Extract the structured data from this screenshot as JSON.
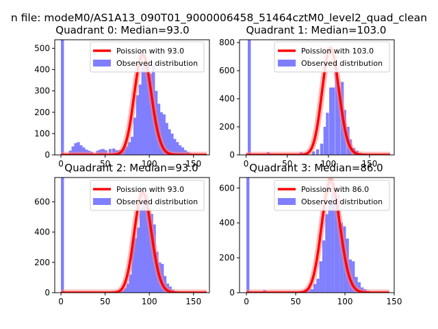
{
  "suptitle": "n file: modeM0/AS1A13_090T01_9000006458_51464cztM0_level2_quad_clean",
  "colors": {
    "hist": "#7f7fff",
    "curve": "#ff0000",
    "curve_glow": "#ff8080"
  },
  "chart_data": [
    {
      "type": "bar",
      "title": "Quadrant 0: Median=93.0",
      "xlim": [
        -7,
        168
      ],
      "ylim": [
        0,
        540
      ],
      "xticks": [
        0,
        50,
        100,
        150
      ],
      "yticks": [
        0,
        100,
        200,
        300,
        400,
        500
      ],
      "bin_width": 3.4,
      "bins": [
        [
          0,
          540
        ],
        [
          9,
          20
        ],
        [
          12,
          40
        ],
        [
          15,
          55
        ],
        [
          18,
          60
        ],
        [
          21,
          45
        ],
        [
          24,
          35
        ],
        [
          27,
          25
        ],
        [
          30,
          20
        ],
        [
          33,
          15
        ],
        [
          40,
          20
        ],
        [
          43,
          25
        ],
        [
          46,
          28
        ],
        [
          49,
          22
        ],
        [
          54,
          28
        ],
        [
          58,
          30
        ],
        [
          61,
          22
        ],
        [
          64,
          22
        ],
        [
          67,
          20
        ],
        [
          70,
          30
        ],
        [
          73,
          40
        ],
        [
          76,
          60
        ],
        [
          79,
          85
        ],
        [
          82,
          175
        ],
        [
          85,
          280
        ],
        [
          88,
          330
        ],
        [
          91,
          420
        ],
        [
          94,
          420
        ],
        [
          97,
          430
        ],
        [
          100,
          380
        ],
        [
          103,
          420
        ],
        [
          106,
          300
        ],
        [
          109,
          240
        ],
        [
          112,
          200
        ],
        [
          115,
          190
        ],
        [
          118,
          150
        ],
        [
          121,
          120
        ],
        [
          124,
          100
        ],
        [
          127,
          75
        ],
        [
          130,
          60
        ],
        [
          133,
          45
        ],
        [
          136,
          35
        ],
        [
          139,
          22
        ],
        [
          142,
          15
        ],
        [
          145,
          8
        ],
        [
          152,
          5
        ]
      ],
      "poisson": {
        "mean": 93.0,
        "x_range": [
          0,
          165
        ],
        "peak": 470
      },
      "legend": {
        "placement": "upper-right",
        "entries": [
          "Poission with 93.0",
          "Observed distribution"
        ]
      }
    },
    {
      "type": "bar",
      "title": "Quadrant 1: Median=103.0",
      "xlim": [
        -8,
        180
      ],
      "ylim": [
        0,
        820
      ],
      "xticks": [
        0,
        50,
        100,
        150
      ],
      "yticks": [
        0,
        200,
        400,
        600,
        800
      ],
      "bin_width": 3.7,
      "bins": [
        [
          2,
          820
        ],
        [
          25,
          20
        ],
        [
          65,
          20
        ],
        [
          80,
          25
        ],
        [
          85,
          40
        ],
        [
          90,
          80
        ],
        [
          94,
          200
        ],
        [
          97,
          300
        ],
        [
          101,
          480
        ],
        [
          104,
          480
        ],
        [
          108,
          660
        ],
        [
          111,
          480
        ],
        [
          115,
          520
        ],
        [
          118,
          320
        ],
        [
          122,
          200
        ],
        [
          125,
          110
        ],
        [
          129,
          50
        ],
        [
          133,
          30
        ],
        [
          137,
          15
        ],
        [
          141,
          10
        ]
      ],
      "poisson": {
        "mean": 103.0,
        "x_range": [
          0,
          175
        ],
        "peak": 760
      },
      "legend": {
        "placement": "upper-right",
        "entries": [
          "Poission with 103.0",
          "Observed distribution"
        ]
      }
    },
    {
      "type": "bar",
      "title": "Quadrant 2: Median=93.0",
      "xlim": [
        -7,
        168
      ],
      "ylim": [
        0,
        760
      ],
      "xticks": [
        0,
        50,
        100,
        150
      ],
      "yticks": [
        0,
        200,
        400,
        600
      ],
      "bin_width": 3.4,
      "bins": [
        [
          0,
          760
        ],
        [
          65,
          10
        ],
        [
          68,
          15
        ],
        [
          71,
          30
        ],
        [
          74,
          60
        ],
        [
          77,
          120
        ],
        [
          80,
          330
        ],
        [
          83,
          360
        ],
        [
          86,
          430
        ],
        [
          89,
          560
        ],
        [
          92,
          600
        ],
        [
          95,
          650
        ],
        [
          98,
          560
        ],
        [
          101,
          520
        ],
        [
          104,
          450
        ],
        [
          107,
          270
        ],
        [
          110,
          200
        ],
        [
          113,
          190
        ],
        [
          116,
          110
        ],
        [
          119,
          60
        ],
        [
          122,
          40
        ],
        [
          125,
          20
        ],
        [
          128,
          10
        ]
      ],
      "poisson": {
        "mean": 93.0,
        "x_range": [
          0,
          165
        ],
        "peak": 660
      },
      "legend": {
        "placement": "upper-right",
        "entries": [
          "Poission with 93.0",
          "Observed distribution"
        ]
      }
    },
    {
      "type": "bar",
      "title": "Quadrant 3: Median=86.0",
      "xlim": [
        -7,
        150
      ],
      "ylim": [
        0,
        660
      ],
      "xticks": [
        0,
        50,
        100,
        150
      ],
      "yticks": [
        0,
        200,
        400,
        600
      ],
      "bin_width": 3.0,
      "bins": [
        [
          0,
          660
        ],
        [
          17,
          15
        ],
        [
          56,
          10
        ],
        [
          59,
          20
        ],
        [
          62,
          30
        ],
        [
          65,
          20
        ],
        [
          68,
          50
        ],
        [
          71,
          80
        ],
        [
          74,
          180
        ],
        [
          77,
          300
        ],
        [
          80,
          450
        ],
        [
          83,
          510
        ],
        [
          86,
          600
        ],
        [
          89,
          590
        ],
        [
          92,
          560
        ],
        [
          95,
          400
        ],
        [
          98,
          380
        ],
        [
          101,
          310
        ],
        [
          104,
          190
        ],
        [
          107,
          180
        ],
        [
          110,
          90
        ],
        [
          113,
          60
        ],
        [
          116,
          30
        ],
        [
          119,
          20
        ],
        [
          122,
          10
        ]
      ],
      "poisson": {
        "mean": 86.0,
        "x_range": [
          0,
          145
        ],
        "peak": 640
      },
      "legend": {
        "placement": "upper-right",
        "entries": [
          "Poission with 86.0",
          "Observed distribution"
        ]
      }
    }
  ]
}
